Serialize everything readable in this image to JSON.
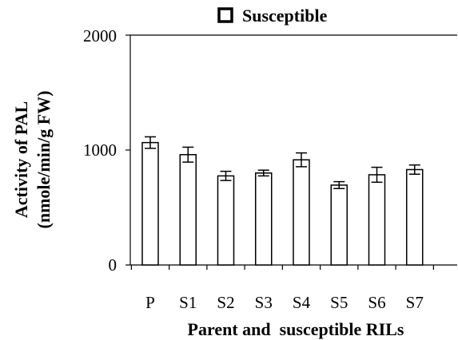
{
  "chart_data": {
    "type": "bar",
    "categories": [
      "P",
      "S1",
      "S2",
      "S3",
      "S4",
      "S5",
      "S6",
      "S7"
    ],
    "series": [
      {
        "name": "Susceptible",
        "values": [
          1065,
          960,
          775,
          800,
          915,
          695,
          785,
          830
        ],
        "errors": [
          50,
          65,
          40,
          25,
          60,
          30,
          65,
          40
        ]
      }
    ],
    "ylim": [
      0,
      2000
    ],
    "yticks": [
      "0",
      "1000",
      "2000"
    ],
    "ylabel_line1": "Activity of PAL",
    "ylabel_line2": "(nmole/min/g FW)",
    "xlabel": "Parent and  susceptible RILs",
    "legend_position": "top-center",
    "grid": false,
    "bar_fill": "#ffffff",
    "bar_stroke": "#000000"
  }
}
